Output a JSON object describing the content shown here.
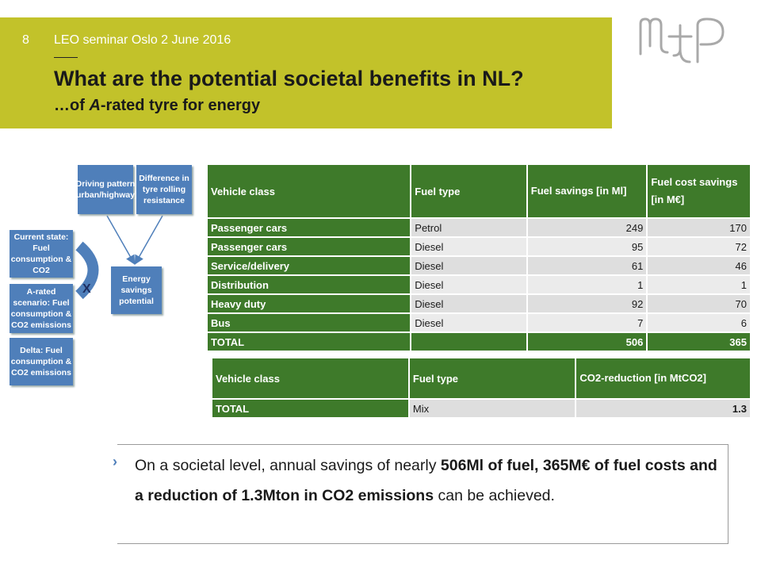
{
  "header": {
    "slide_number": "8",
    "seminar": "LEO seminar Oslo 2 June 2016",
    "title": "What are the potential societal benefits in NL?",
    "subtitle_pre": "…of ",
    "subtitle_em": "A",
    "subtitle_post": "-rated tyre for energy",
    "accent": "#c2c22a"
  },
  "logo": {
    "name": "M+P logo"
  },
  "diagram": {
    "driving_pattern": "Driving pattern (urban/highway)",
    "tyre_difference": "Difference in tyre rolling resistance",
    "current_state": "Current state: Fuel consumption & CO2",
    "a_rated": "A-rated scenario: Fuel consumption & CO2 emissions",
    "delta": "Delta: Fuel consumption & CO2 emissions",
    "energy_savings": "Energy savings potential",
    "operator": "X",
    "box_color": "#4f7fba"
  },
  "table1": {
    "headers": [
      "Vehicle class",
      "Fuel type",
      "Fuel savings [in Ml]",
      "Fuel cost savings [in M€]"
    ],
    "rows": [
      [
        "Passenger cars",
        "Petrol",
        "249",
        "170"
      ],
      [
        "Passenger cars",
        "Diesel",
        "95",
        "72"
      ],
      [
        "Service/delivery",
        "Diesel",
        "61",
        "46"
      ],
      [
        "Distribution",
        "Diesel",
        "1",
        "1"
      ],
      [
        "Heavy duty",
        "Diesel",
        "92",
        "70"
      ],
      [
        "Bus",
        "Diesel",
        "7",
        "6"
      ]
    ],
    "total": [
      "TOTAL",
      "",
      "506",
      "365"
    ]
  },
  "table2": {
    "headers": [
      "Vehicle class",
      "Fuel type",
      "CO2-reduction [in MtCO2]"
    ],
    "row": [
      "TOTAL",
      "Mix",
      "1.3"
    ]
  },
  "bullet": {
    "t1": "On a societal level, annual savings of nearly ",
    "b1": "506Ml of fuel, 365M€ of fuel costs and a reduction of 1.3Mton in CO2 emissions",
    "t2": " can be achieved."
  }
}
